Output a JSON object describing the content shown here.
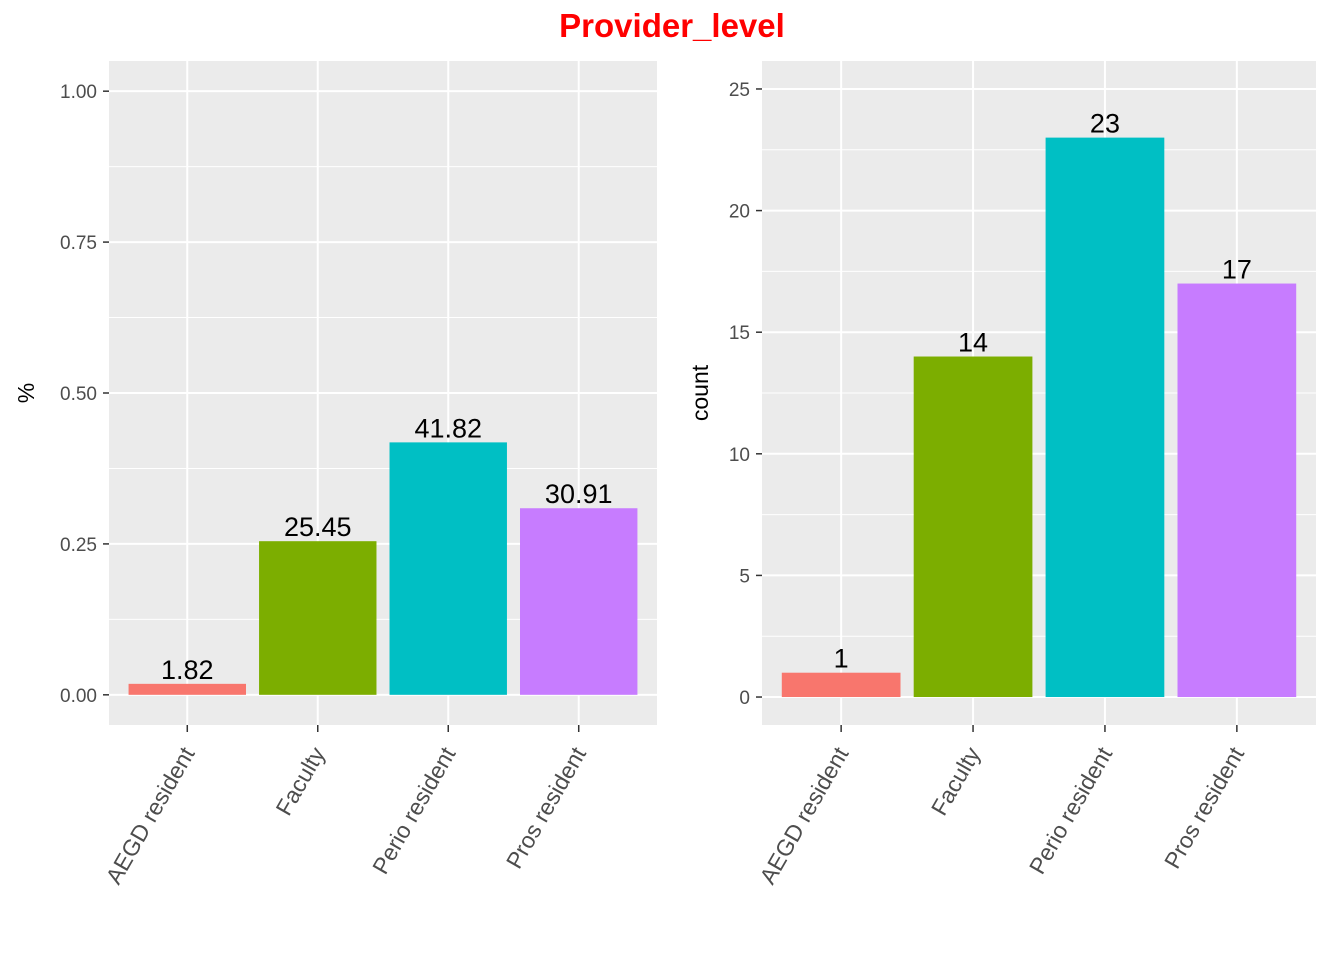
{
  "title": "Provider_level",
  "chart_data": [
    {
      "type": "bar",
      "categories": [
        "AEGD resident",
        "Faculty",
        "Perio resident",
        "Pros resident"
      ],
      "values": [
        0.0182,
        0.2545,
        0.4182,
        0.3091
      ],
      "data_labels": [
        "1.82",
        "25.45",
        "41.82",
        "30.91"
      ],
      "ylabel": "%",
      "ylim": [
        -0.05,
        1.05
      ],
      "yticks": [
        0,
        0.25,
        0.5,
        0.75,
        1.0
      ],
      "ytick_labels": [
        "0.00",
        "0.25",
        "0.50",
        "0.75",
        "1.00"
      ],
      "grid": true
    },
    {
      "type": "bar",
      "categories": [
        "AEGD resident",
        "Faculty",
        "Perio resident",
        "Pros resident"
      ],
      "values": [
        1,
        14,
        23,
        17
      ],
      "data_labels": [
        "1",
        "14",
        "23",
        "17"
      ],
      "ylabel": "count",
      "ylim": [
        -1.15,
        26.15
      ],
      "yticks": [
        0,
        5,
        10,
        15,
        20,
        25
      ],
      "ytick_labels": [
        "0",
        "5",
        "10",
        "15",
        "20",
        "25"
      ],
      "grid": true
    }
  ],
  "colors": [
    "#F8766D",
    "#7CAE00",
    "#00BFC4",
    "#C77CFF"
  ],
  "panel_bg": "#EBEBEB",
  "grid_color": "#FFFFFF"
}
